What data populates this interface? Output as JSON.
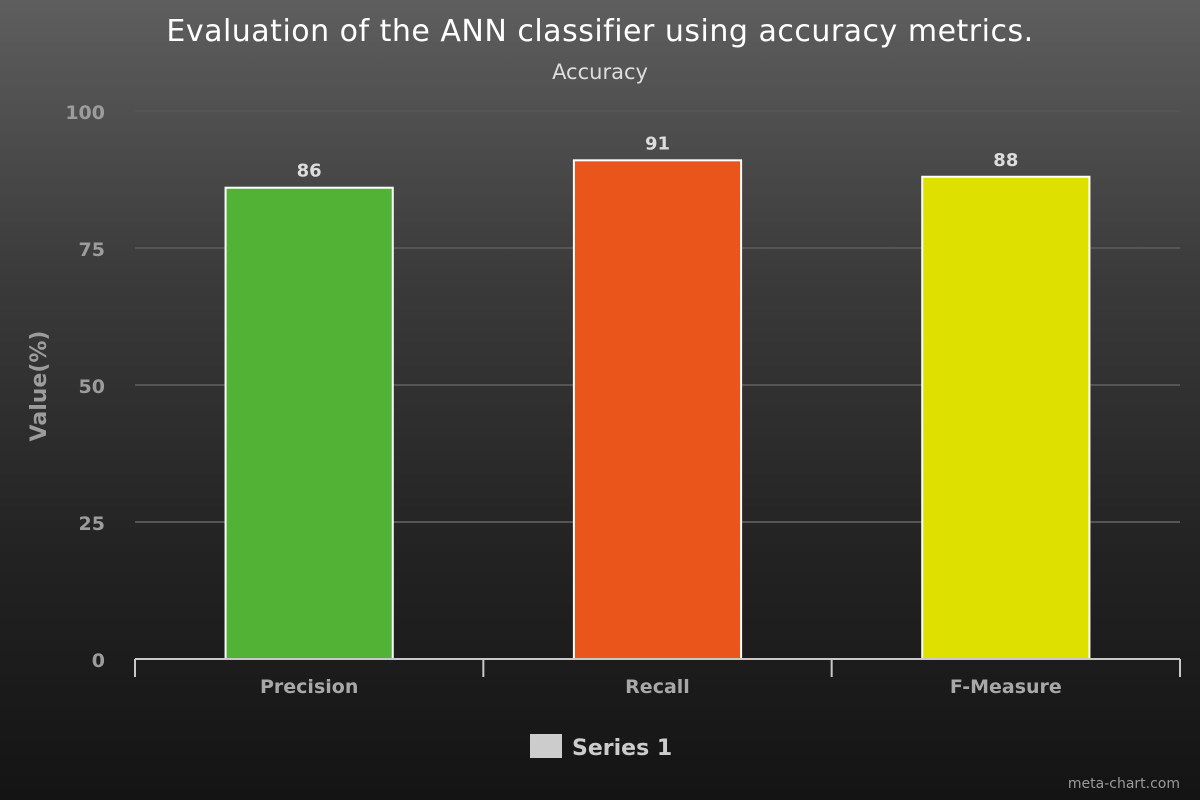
{
  "chart_data": {
    "type": "bar",
    "title": "Evaluation of the ANN classifier using accuracy metrics.",
    "subtitle": "Accuracy",
    "xlabel": "",
    "ylabel": "Value(%)",
    "ylim": [
      0,
      100
    ],
    "yticks": [
      0,
      25,
      50,
      75,
      100
    ],
    "grid": true,
    "categories": [
      "Precision",
      "Recall",
      "F-Measure"
    ],
    "series": [
      {
        "name": "Series 1",
        "values": [
          86,
          91,
          88
        ],
        "data_labels": [
          "86",
          "91",
          "88"
        ]
      }
    ],
    "bar_colors": [
      "#52b235",
      "#ea551b",
      "#dee000"
    ],
    "legend": {
      "placement": "bottom",
      "color": "#cccccc"
    }
  },
  "watermark": "meta-chart.com"
}
